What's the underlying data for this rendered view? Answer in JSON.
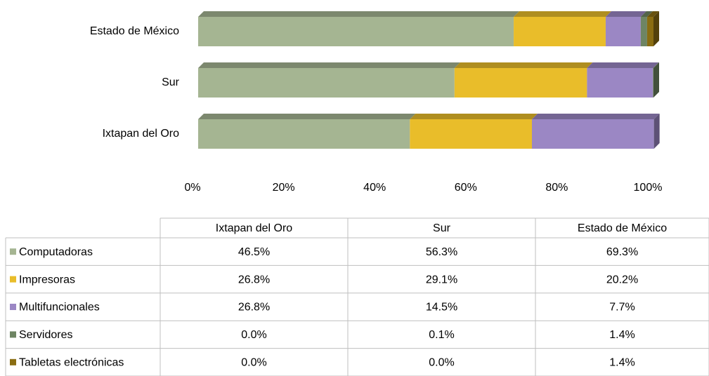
{
  "chart_data": {
    "type": "stacked-bar-horizontal",
    "categories": [
      "Ixtapan del Oro",
      "Sur",
      "Estado de México"
    ],
    "series": [
      {
        "name": "Computadoras",
        "color": "#a5b592",
        "values": [
          46.5,
          56.3,
          69.3
        ],
        "value_labels": [
          "46.5%",
          "56.3%",
          "69.3%"
        ]
      },
      {
        "name": "Impresoras",
        "color": "#e9bd2a",
        "values": [
          26.8,
          29.1,
          20.2
        ],
        "value_labels": [
          "26.8%",
          "29.1%",
          "20.2%"
        ]
      },
      {
        "name": "Multifuncionales",
        "color": "#9b87c4",
        "values": [
          26.8,
          14.5,
          7.7
        ],
        "value_labels": [
          "26.8%",
          "14.5%",
          "7.7%"
        ]
      },
      {
        "name": "Servidores",
        "color": "#6e8563",
        "values": [
          0.0,
          0.1,
          1.4
        ],
        "value_labels": [
          "0.0%",
          "0.1%",
          "1.4%"
        ]
      },
      {
        "name": "Tabletas electrónicas",
        "color": "#8a6d12",
        "values": [
          0.0,
          0.0,
          1.4
        ],
        "value_labels": [
          "0.0%",
          "0.0%",
          "1.4%"
        ]
      }
    ],
    "xlim": [
      0,
      100
    ],
    "xticks": [
      {
        "value": 0,
        "label": "0%"
      },
      {
        "value": 20,
        "label": "20%"
      },
      {
        "value": 40,
        "label": "40%"
      },
      {
        "value": 60,
        "label": "60%"
      },
      {
        "value": 80,
        "label": "80%"
      },
      {
        "value": 100,
        "label": "100%"
      }
    ],
    "data_table": true
  }
}
